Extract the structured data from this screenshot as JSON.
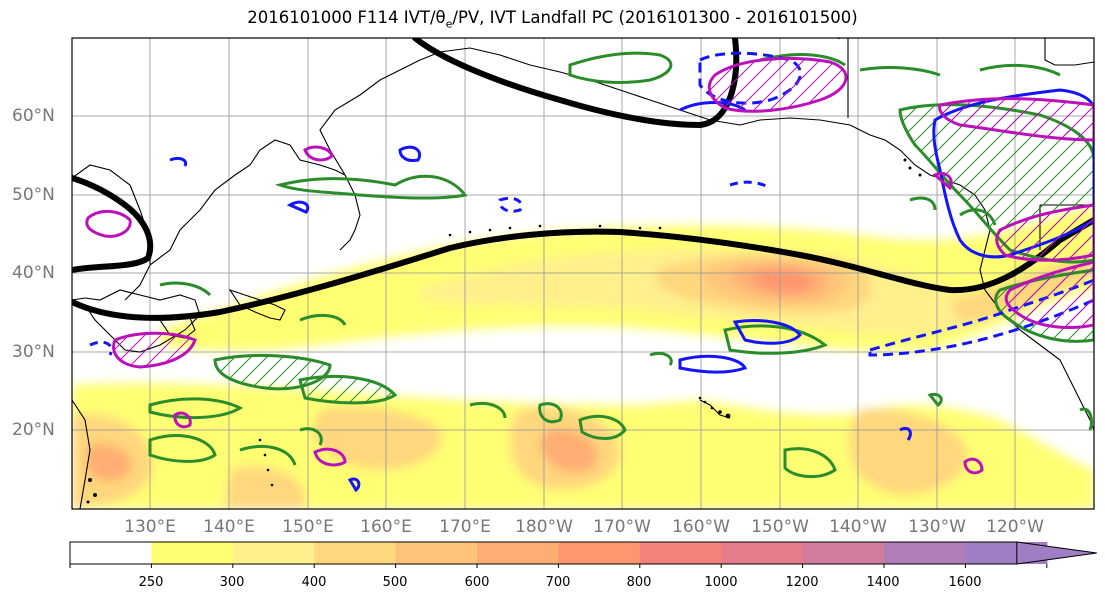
{
  "title": {
    "pre": "2016101000 F114 IVT/θ",
    "sub": "e",
    "post": "/PV, IVT Landfall PC (2016101300 - 2016101500)"
  },
  "map": {
    "lat_labels": [
      "60°N",
      "50°N",
      "40°N",
      "30°N",
      "20°N"
    ],
    "lon_labels": [
      "130°E",
      "140°E",
      "150°E",
      "160°E",
      "170°E",
      "180°W",
      "170°W",
      "160°W",
      "150°W",
      "140°W",
      "130°W",
      "120°W"
    ],
    "fields": {
      "ivt_shading": "IVT",
      "black_contour": "PV",
      "green_contour_hatch": "θe",
      "blue_contour": "θe",
      "magenta_contour_hatch": "IVT Landfall PC"
    }
  },
  "colorbar": {
    "levels": [
      250,
      300,
      400,
      500,
      600,
      700,
      800,
      1000,
      1200,
      1400,
      1600
    ],
    "labels": [
      "250",
      "300",
      "400",
      "500",
      "600",
      "700",
      "800",
      "1000",
      "1200",
      "1400",
      "1600"
    ],
    "colors": [
      "#ffffff",
      "#ffff73",
      "#fff08c",
      "#ffd77d",
      "#ffc47a",
      "#ffae73",
      "#ff966e",
      "#f5827a",
      "#e67d8c",
      "#d27da0",
      "#b07db8",
      "#a07ec4"
    ],
    "extend": "max"
  },
  "colors": {
    "pv": "#000000",
    "green": "#2a8c2a",
    "blue": "#1414ff",
    "magenta": "#bb11bb",
    "coast": "#000000",
    "grid": "#999999",
    "label": "#777777"
  }
}
